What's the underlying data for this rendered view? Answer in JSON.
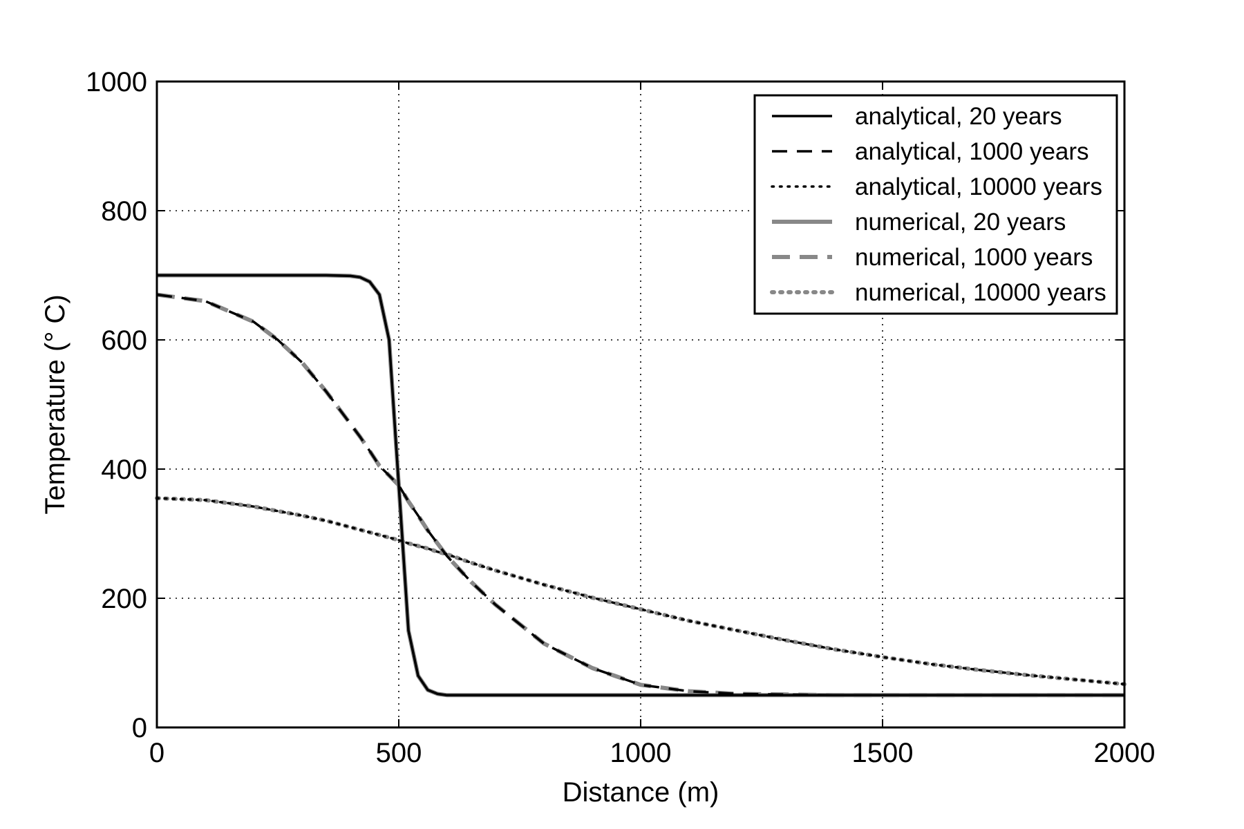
{
  "chart_data": {
    "type": "line",
    "title": "",
    "xlabel": "Distance (m)",
    "ylabel": "Temperature (° C)",
    "xlim": [
      0,
      2000
    ],
    "ylim": [
      0,
      1000
    ],
    "xticks": [
      0,
      500,
      1000,
      1500,
      2000
    ],
    "xtick_labels": [
      "0",
      "500",
      "1000",
      "1500",
      "2000"
    ],
    "yticks": [
      0,
      200,
      400,
      600,
      800,
      1000
    ],
    "ytick_labels": [
      "0",
      "200",
      "400",
      "600",
      "800",
      "1000"
    ],
    "grid": true,
    "legend_position": "top-right",
    "x": [
      0,
      100,
      200,
      250,
      300,
      350,
      400,
      420,
      440,
      460,
      480,
      500,
      520,
      540,
      560,
      580,
      600,
      650,
      700,
      800,
      900,
      1000,
      1100,
      1200,
      1300,
      1400,
      1500,
      1600,
      1700,
      1800,
      1900,
      2000
    ],
    "series": [
      {
        "name": "analytical, 20 years",
        "style": "solid",
        "color": "#000000",
        "values": [
          700,
          700,
          700,
          700,
          700,
          700,
          699,
          697,
          690,
          670,
          600,
          375,
          150,
          80,
          58,
          52,
          50,
          50,
          50,
          50,
          50,
          50,
          50,
          50,
          50,
          50,
          50,
          50,
          50,
          50,
          50,
          50
        ]
      },
      {
        "name": "analytical, 1000 years",
        "style": "dashed",
        "color": "#000000",
        "values": [
          670,
          660,
          628,
          600,
          565,
          520,
          470,
          450,
          428,
          405,
          390,
          375,
          350,
          328,
          305,
          285,
          265,
          225,
          190,
          130,
          92,
          66,
          56,
          52,
          51,
          50,
          50,
          50,
          50,
          50,
          50,
          50
        ]
      },
      {
        "name": "analytical, 10000 years",
        "style": "dotted",
        "color": "#000000",
        "values": [
          355,
          352,
          342,
          335,
          328,
          320,
          310,
          306,
          302,
          298,
          294,
          290,
          285,
          281,
          277,
          272,
          268,
          255,
          243,
          221,
          201,
          183,
          165,
          150,
          135,
          121,
          109,
          98,
          89,
          81,
          74,
          67
        ]
      },
      {
        "name": "numerical, 20 years",
        "style": "solid",
        "color": "#888888",
        "values": [
          700,
          700,
          700,
          700,
          700,
          700,
          699,
          697,
          690,
          670,
          600,
          375,
          150,
          80,
          58,
          52,
          50,
          50,
          50,
          50,
          50,
          50,
          50,
          50,
          50,
          50,
          50,
          50,
          50,
          50,
          50,
          50
        ]
      },
      {
        "name": "numerical, 1000 years",
        "style": "dashed",
        "color": "#888888",
        "values": [
          670,
          660,
          628,
          600,
          565,
          520,
          470,
          450,
          428,
          405,
          390,
          375,
          350,
          328,
          305,
          285,
          265,
          225,
          190,
          130,
          92,
          66,
          56,
          52,
          51,
          50,
          50,
          50,
          50,
          50,
          50,
          50
        ]
      },
      {
        "name": "numerical, 10000 years",
        "style": "dotted",
        "color": "#888888",
        "values": [
          355,
          352,
          342,
          335,
          328,
          320,
          310,
          306,
          302,
          298,
          294,
          290,
          285,
          281,
          277,
          272,
          268,
          255,
          243,
          221,
          201,
          183,
          165,
          150,
          135,
          121,
          109,
          98,
          89,
          81,
          74,
          67
        ]
      }
    ]
  }
}
